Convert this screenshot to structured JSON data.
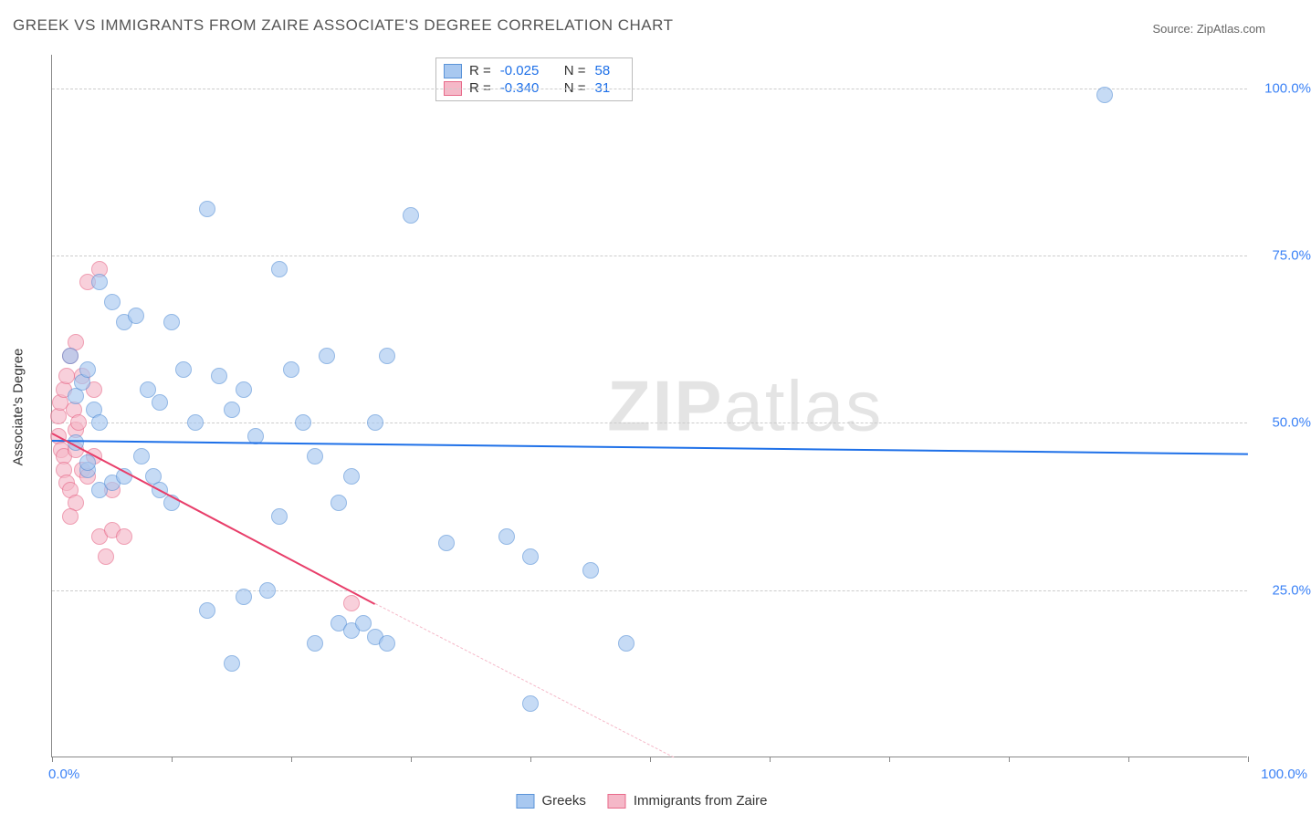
{
  "title": "GREEK VS IMMIGRANTS FROM ZAIRE ASSOCIATE'S DEGREE CORRELATION CHART",
  "source": "Source: ZipAtlas.com",
  "watermark": {
    "bold": "ZIP",
    "rest": "atlas"
  },
  "y_axis": {
    "title": "Associate's Degree",
    "ticks": [
      {
        "v": 25,
        "label": "25.0%"
      },
      {
        "v": 50,
        "label": "50.0%"
      },
      {
        "v": 75,
        "label": "75.0%"
      },
      {
        "v": 100,
        "label": "100.0%"
      }
    ],
    "min": 0,
    "max": 105
  },
  "x_axis": {
    "min": 0,
    "max": 100,
    "ticks": [
      0,
      10,
      20,
      30,
      40,
      50,
      60,
      70,
      80,
      90,
      100
    ],
    "label_left": "0.0%",
    "label_right": "100.0%"
  },
  "series": {
    "greeks": {
      "name": "Greeks",
      "color_fill": "#a8c8f0",
      "color_stroke": "#5a93d8",
      "marker_radius": 9,
      "marker_opacity": 0.65,
      "R": "-0.025",
      "N": "58",
      "trend": {
        "x1": 0,
        "y1": 47.5,
        "x2": 100,
        "y2": 45.5,
        "color": "#1e70e8",
        "width": 2.5,
        "dash": false
      },
      "points": [
        [
          2,
          54
        ],
        [
          2.5,
          56
        ],
        [
          3,
          58
        ],
        [
          3.5,
          52
        ],
        [
          4,
          50
        ],
        [
          1.5,
          60
        ],
        [
          2,
          47
        ],
        [
          3,
          43
        ],
        [
          5,
          68
        ],
        [
          6,
          65
        ],
        [
          7,
          66
        ],
        [
          4,
          71
        ],
        [
          3,
          44
        ],
        [
          4,
          40
        ],
        [
          5,
          41
        ],
        [
          6,
          42
        ],
        [
          8,
          55
        ],
        [
          9,
          53
        ],
        [
          11,
          58
        ],
        [
          12,
          50
        ],
        [
          10,
          65
        ],
        [
          7.5,
          45
        ],
        [
          8.5,
          42
        ],
        [
          13,
          82
        ],
        [
          14,
          57
        ],
        [
          15,
          52
        ],
        [
          16,
          55
        ],
        [
          17,
          48
        ],
        [
          9,
          40
        ],
        [
          10,
          38
        ],
        [
          19,
          73
        ],
        [
          20,
          58
        ],
        [
          21,
          50
        ],
        [
          22,
          45
        ],
        [
          23,
          60
        ],
        [
          24,
          38
        ],
        [
          25,
          42
        ],
        [
          27,
          50
        ],
        [
          28,
          60
        ],
        [
          30,
          81
        ],
        [
          13,
          22
        ],
        [
          15,
          14
        ],
        [
          16,
          24
        ],
        [
          18,
          25
        ],
        [
          19,
          36
        ],
        [
          22,
          17
        ],
        [
          24,
          20
        ],
        [
          25,
          19
        ],
        [
          26,
          20
        ],
        [
          27,
          18
        ],
        [
          28,
          17
        ],
        [
          33,
          32
        ],
        [
          38,
          33
        ],
        [
          40,
          30
        ],
        [
          45,
          28
        ],
        [
          48,
          17
        ],
        [
          40,
          8
        ],
        [
          88,
          99
        ]
      ]
    },
    "zaire": {
      "name": "Immigrants from Zaire",
      "color_fill": "#f5b8c8",
      "color_stroke": "#e86a8a",
      "marker_radius": 9,
      "marker_opacity": 0.65,
      "R": "-0.340",
      "N": "31",
      "trend_solid": {
        "x1": 0,
        "y1": 48.5,
        "x2": 27,
        "y2": 23,
        "color": "#e83e6a",
        "width": 2.5,
        "dash": false
      },
      "trend_dash": {
        "x1": 27,
        "y1": 23,
        "x2": 52,
        "y2": 0,
        "color": "#f5b8c8",
        "width": 1.5,
        "dash": true
      },
      "points": [
        [
          0.5,
          48
        ],
        [
          0.8,
          46
        ],
        [
          1,
          45
        ],
        [
          1,
          43
        ],
        [
          1.2,
          41
        ],
        [
          1.5,
          40
        ],
        [
          0.5,
          51
        ],
        [
          0.7,
          53
        ],
        [
          1,
          55
        ],
        [
          1.2,
          57
        ],
        [
          2,
          49
        ],
        [
          2,
          46
        ],
        [
          2.5,
          43
        ],
        [
          3,
          42
        ],
        [
          1.5,
          60
        ],
        [
          2,
          62
        ],
        [
          3,
          71
        ],
        [
          4,
          73
        ],
        [
          3.5,
          55
        ],
        [
          5,
          40
        ],
        [
          4,
          33
        ],
        [
          5,
          34
        ],
        [
          6,
          33
        ],
        [
          4.5,
          30
        ],
        [
          2.5,
          57
        ],
        [
          1.8,
          52
        ],
        [
          2.2,
          50
        ],
        [
          3.5,
          45
        ],
        [
          25,
          23
        ],
        [
          2,
          38
        ],
        [
          1.5,
          36
        ]
      ]
    }
  },
  "legend_top": {
    "rows": [
      {
        "swatch": "greeks",
        "R_label": "R =",
        "R_val": "-0.025",
        "N_label": "N =",
        "N_val": "58"
      },
      {
        "swatch": "zaire",
        "R_label": "R =",
        "R_val": "-0.340",
        "N_label": "N =",
        "N_val": "31"
      }
    ]
  },
  "legend_bottom": [
    {
      "swatch": "greeks",
      "label": "Greeks"
    },
    {
      "swatch": "zaire",
      "label": "Immigrants from Zaire"
    }
  ],
  "styling": {
    "background": "#ffffff",
    "grid_color": "#cccccc",
    "axis_color": "#888888",
    "title_color": "#555555",
    "title_fontsize": 17,
    "tick_label_color": "#3b82f6",
    "tick_fontsize": 15
  }
}
